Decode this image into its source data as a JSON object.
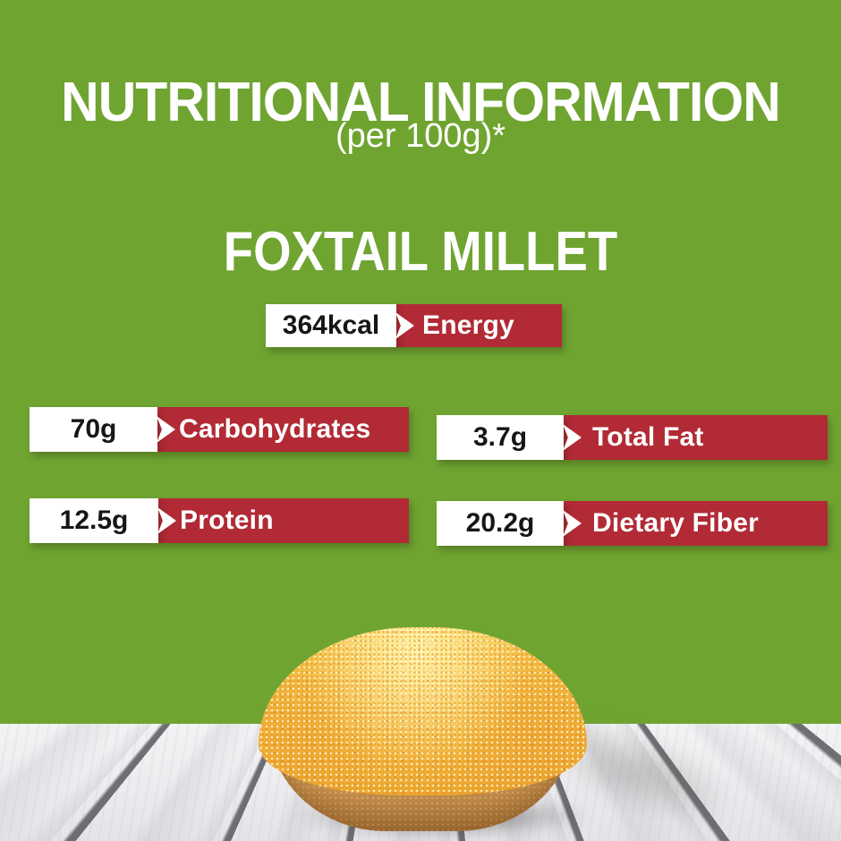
{
  "header": {
    "title": "NUTRITIONAL INFORMATION",
    "serving_note": "(per 100g)*",
    "product_name": "FOXTAIL MILLET"
  },
  "nutrients": [
    {
      "value": "364kcal",
      "label": "Energy"
    },
    {
      "value": "70g",
      "label": "Carbohydrates"
    },
    {
      "value": "3.7g",
      "label": "Total Fat"
    },
    {
      "value": "12.5g",
      "label": "Protein"
    },
    {
      "value": "20.2g",
      "label": "Dietary Fiber"
    }
  ],
  "colors": {
    "background_green": "#6FA431",
    "label_red": "#B12A35",
    "value_box_white": "#FFFFFF",
    "value_text_black": "#161616",
    "millet_yellow": "#F6C843",
    "bowl_tan": "#D8A05C"
  },
  "illustration": {
    "description": "Wooden bowl heaped with yellow foxtail millet grains on a white wooden plank table"
  }
}
